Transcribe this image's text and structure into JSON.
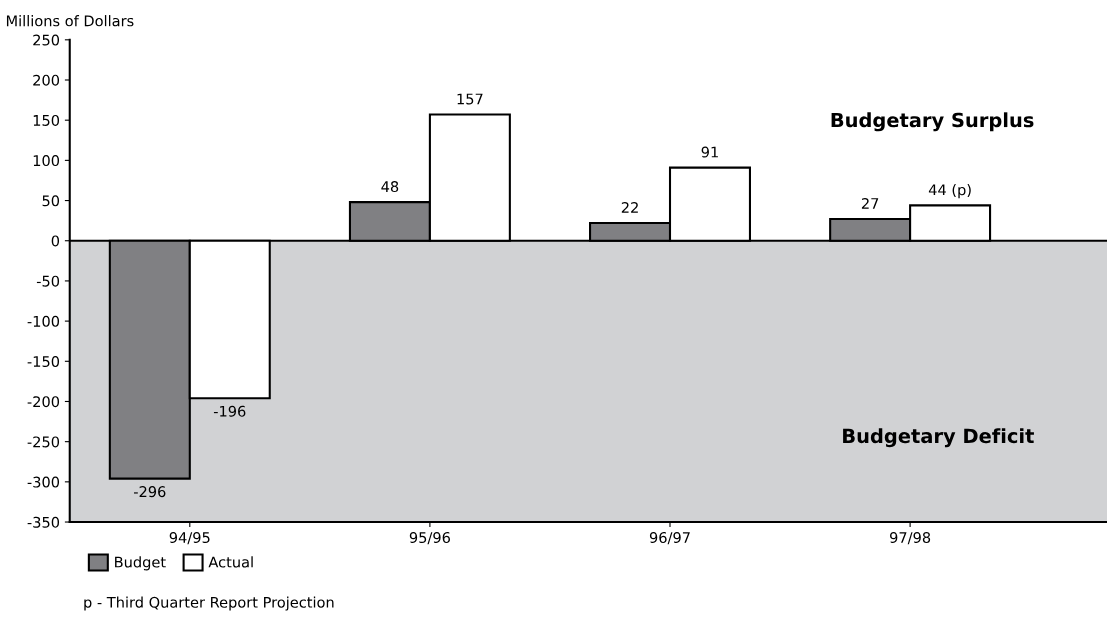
{
  "chart_data": {
    "type": "bar",
    "ylabel": "Millions of Dollars",
    "categories": [
      "94/95",
      "95/96",
      "96/97",
      "97/98"
    ],
    "series": [
      {
        "name": "Budget",
        "color": "#808083",
        "values": [
          -296,
          48,
          22,
          27
        ],
        "value_labels": [
          "-296",
          "48",
          "22",
          "27"
        ]
      },
      {
        "name": "Actual",
        "color": "#ffffff",
        "values": [
          -196,
          157,
          91,
          44
        ],
        "value_labels": [
          "-196",
          "157",
          "91",
          "44 (p)"
        ]
      }
    ],
    "ylim": [
      -350,
      250
    ],
    "yticks": [
      -350,
      -300,
      -250,
      -200,
      -150,
      -100,
      -50,
      0,
      50,
      100,
      150,
      200,
      250
    ],
    "bands": [
      {
        "axis": "y",
        "from": -350,
        "to": 0,
        "label": "Budgetary Deficit",
        "color": "#d1d2d4"
      }
    ],
    "ref_lines": [
      {
        "axis": "y",
        "value": 0,
        "color": "#000000"
      }
    ],
    "annotations": [
      "Budgetary Surplus",
      "p - Third Quarter Report Projection"
    ],
    "grid": false,
    "legend": "bottom left"
  }
}
